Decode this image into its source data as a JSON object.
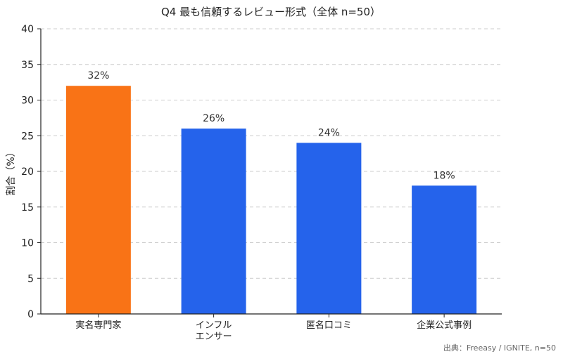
{
  "chart_data": {
    "type": "bar",
    "title": "Q4 最も信頼するレビュー形式（全体 n=50）",
    "xlabel": "",
    "ylabel": "割合（%）",
    "ylim": [
      0,
      40
    ],
    "yticks": [
      0,
      5,
      10,
      15,
      20,
      25,
      30,
      35,
      40
    ],
    "grid": true,
    "categories": [
      [
        "実名専門家"
      ],
      [
        "インフル",
        "エンサー"
      ],
      [
        "匿名口コミ"
      ],
      [
        "企業公式事例"
      ]
    ],
    "values": [
      32,
      26,
      24,
      18
    ],
    "data_labels": [
      "32%",
      "26%",
      "24%",
      "18%"
    ],
    "colors": [
      "#f97316",
      "#2563eb",
      "#2563eb",
      "#2563eb"
    ],
    "source": "出典：Freeasy / IGNITE, n=50"
  }
}
